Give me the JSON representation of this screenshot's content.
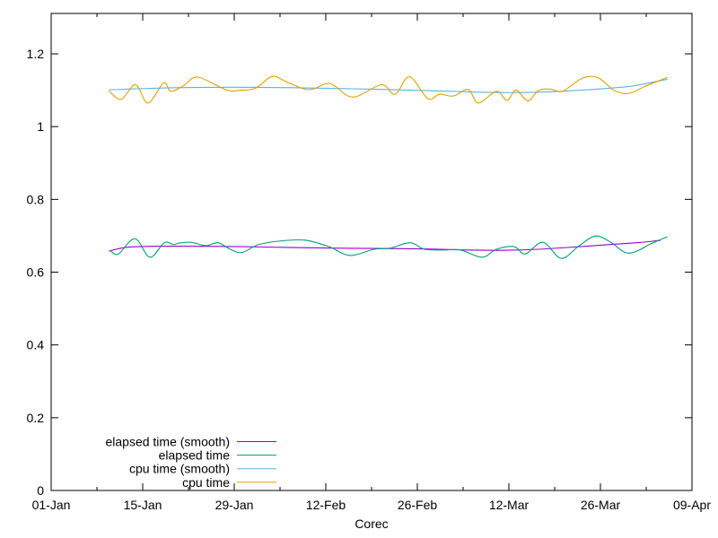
{
  "figure": {
    "background": "#ffffff",
    "axis_color": "#000000",
    "text_color": "#000000"
  },
  "chart_data": {
    "type": "line",
    "title": "",
    "xlabel": "Corec",
    "ylabel": "",
    "grid": false,
    "legend_position": "inside-bottom-left",
    "x_range_days": [
      1,
      99
    ],
    "y_range": [
      0,
      1.311
    ],
    "x_ticks": [
      {
        "day": 1,
        "label": "01-Jan"
      },
      {
        "day": 15,
        "label": "15-Jan"
      },
      {
        "day": 29,
        "label": "29-Jan"
      },
      {
        "day": 43,
        "label": "12-Feb"
      },
      {
        "day": 57,
        "label": "26-Feb"
      },
      {
        "day": 71,
        "label": "12-Mar"
      },
      {
        "day": 85,
        "label": "26-Mar"
      },
      {
        "day": 99,
        "label": "09-Apr"
      }
    ],
    "x_minor_ticks_days": [
      8,
      22,
      36,
      50,
      64,
      78,
      92
    ],
    "y_ticks": [
      {
        "value": 0,
        "label": "0"
      },
      {
        "value": 0.2,
        "label": "0.2"
      },
      {
        "value": 0.4,
        "label": "0.4"
      },
      {
        "value": 0.6,
        "label": "0.6"
      },
      {
        "value": 0.8,
        "label": "0.8"
      },
      {
        "value": 1,
        "label": "1"
      },
      {
        "value": 1.2,
        "label": "1.2"
      }
    ],
    "series": [
      {
        "name": "elapsed time (smooth)",
        "color": "#9400d3",
        "points": [
          [
            9.9,
            0.658
          ],
          [
            12.4,
            0.668
          ],
          [
            16.5,
            0.671
          ],
          [
            23.4,
            0.671
          ],
          [
            30.2,
            0.67
          ],
          [
            37.1,
            0.668
          ],
          [
            44.0,
            0.666
          ],
          [
            50.8,
            0.665
          ],
          [
            57.7,
            0.664
          ],
          [
            64.6,
            0.661
          ],
          [
            70.0,
            0.66
          ],
          [
            75.5,
            0.663
          ],
          [
            81.0,
            0.669
          ],
          [
            86.5,
            0.676
          ],
          [
            90.6,
            0.681
          ],
          [
            94.1,
            0.687
          ]
        ]
      },
      {
        "name": "elapsed time",
        "color": "#009e73",
        "points": [
          [
            10.1,
            0.658
          ],
          [
            11.3,
            0.65
          ],
          [
            13.8,
            0.692
          ],
          [
            16.1,
            0.641
          ],
          [
            18.3,
            0.681
          ],
          [
            19.7,
            0.676
          ],
          [
            20.6,
            0.68
          ],
          [
            22.4,
            0.682
          ],
          [
            24.7,
            0.673
          ],
          [
            26.5,
            0.681
          ],
          [
            28.4,
            0.663
          ],
          [
            30.2,
            0.654
          ],
          [
            32.6,
            0.675
          ],
          [
            35.7,
            0.685
          ],
          [
            39.8,
            0.688
          ],
          [
            43.5,
            0.67
          ],
          [
            46.7,
            0.646
          ],
          [
            50.4,
            0.663
          ],
          [
            52.9,
            0.666
          ],
          [
            55.9,
            0.681
          ],
          [
            58.1,
            0.663
          ],
          [
            61.1,
            0.661
          ],
          [
            63.6,
            0.661
          ],
          [
            66.9,
            0.641
          ],
          [
            69.1,
            0.663
          ],
          [
            71.8,
            0.67
          ],
          [
            73.5,
            0.65
          ],
          [
            76.2,
            0.682
          ],
          [
            79.0,
            0.638
          ],
          [
            81.7,
            0.672
          ],
          [
            84.2,
            0.699
          ],
          [
            86.5,
            0.683
          ],
          [
            88.8,
            0.654
          ],
          [
            90.6,
            0.658
          ],
          [
            92.7,
            0.678
          ],
          [
            95.2,
            0.697
          ]
        ]
      },
      {
        "name": "cpu time (smooth)",
        "color": "#56b4e9",
        "points": [
          [
            9.9,
            1.101
          ],
          [
            14,
            1.104
          ],
          [
            20,
            1.107
          ],
          [
            26,
            1.108
          ],
          [
            32,
            1.108
          ],
          [
            38,
            1.107
          ],
          [
            44,
            1.105
          ],
          [
            50,
            1.103
          ],
          [
            56,
            1.1
          ],
          [
            62,
            1.097
          ],
          [
            68,
            1.094
          ],
          [
            74,
            1.094
          ],
          [
            80,
            1.098
          ],
          [
            86,
            1.105
          ],
          [
            90,
            1.112
          ],
          [
            95.2,
            1.13
          ]
        ]
      },
      {
        "name": "cpu time",
        "color": "#e69f00",
        "points": [
          [
            9.9,
            1.097
          ],
          [
            11.7,
            1.075
          ],
          [
            13.9,
            1.115
          ],
          [
            15.8,
            1.065
          ],
          [
            18.2,
            1.12
          ],
          [
            19.3,
            1.097
          ],
          [
            21.3,
            1.113
          ],
          [
            23.4,
            1.136
          ],
          [
            27.8,
            1.101
          ],
          [
            30.0,
            1.1
          ],
          [
            32.3,
            1.106
          ],
          [
            34.8,
            1.138
          ],
          [
            37.1,
            1.122
          ],
          [
            39.8,
            1.103
          ],
          [
            41.2,
            1.104
          ],
          [
            43.7,
            1.118
          ],
          [
            47.1,
            1.081
          ],
          [
            51.5,
            1.115
          ],
          [
            53.6,
            1.089
          ],
          [
            55.8,
            1.137
          ],
          [
            58.6,
            1.077
          ],
          [
            60.4,
            1.089
          ],
          [
            62.5,
            1.084
          ],
          [
            64.8,
            1.102
          ],
          [
            66.3,
            1.065
          ],
          [
            69.1,
            1.097
          ],
          [
            70.7,
            1.072
          ],
          [
            72.1,
            1.1
          ],
          [
            73.9,
            1.071
          ],
          [
            75.5,
            1.099
          ],
          [
            77.3,
            1.103
          ],
          [
            79.2,
            1.097
          ],
          [
            81.7,
            1.128
          ],
          [
            83.3,
            1.138
          ],
          [
            84.9,
            1.132
          ],
          [
            86.9,
            1.102
          ],
          [
            88.6,
            1.091
          ],
          [
            89.9,
            1.094
          ],
          [
            91.7,
            1.11
          ],
          [
            93.4,
            1.122
          ],
          [
            95.2,
            1.135
          ]
        ]
      }
    ]
  }
}
